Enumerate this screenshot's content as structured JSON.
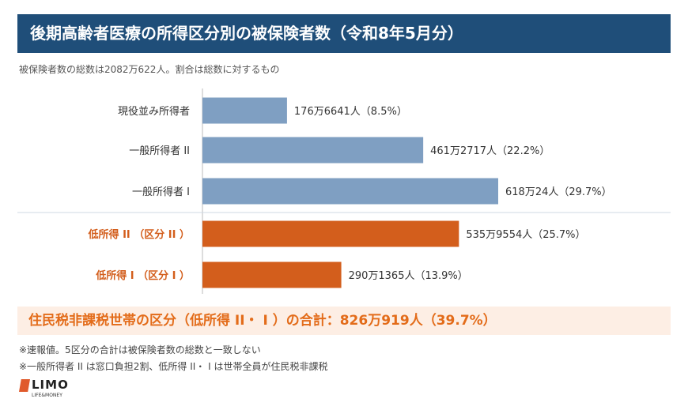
{
  "header": {
    "title": "後期高齢者医療の所得区分別の被保険者数（令和8年5月分）",
    "subtitle": "被保険者数の総数は2082万622人。割合は総数に対するもの"
  },
  "chart_data": {
    "type": "bar",
    "orientation": "horizontal",
    "categories": [
      "現役並み所得者",
      "一般所得者 II",
      "一般所得者 I",
      "低所得 II （区分 II ）",
      "低所得 I （区分 I ）"
    ],
    "values": [
      1766641,
      4612717,
      6180024,
      5359554,
      2901365
    ],
    "data_labels": [
      "176万6641人（8.5%）",
      "461万2717人（22.2%）",
      "618万24人（29.7%）",
      "535万9554人（25.7%）",
      "290万1365人（13.9%）"
    ],
    "percentages": [
      8.5,
      22.2,
      29.7,
      25.7,
      13.9
    ],
    "bar_colors": [
      "#7f9fc2",
      "#7f9fc2",
      "#7f9fc2",
      "#d35e1c",
      "#d35e1c"
    ],
    "label_colors": [
      "#333333",
      "#333333",
      "#333333",
      "#d35e1c",
      "#d35e1c"
    ],
    "grid": false,
    "legend": "none"
  },
  "total": {
    "text": "住民税非課税世帯の区分（低所得 II・ I ）の合計：826万919人（39.7%）"
  },
  "notes": [
    "※速報値。5区分の合計は被保険者数の総数と一致しない",
    "※一般所得者 II は窓口負担2割、低所得 II・ I は世帯全員が住民税非課税"
  ],
  "logo": {
    "name": "LIMO",
    "tagline": "LIFE&MONEY"
  }
}
